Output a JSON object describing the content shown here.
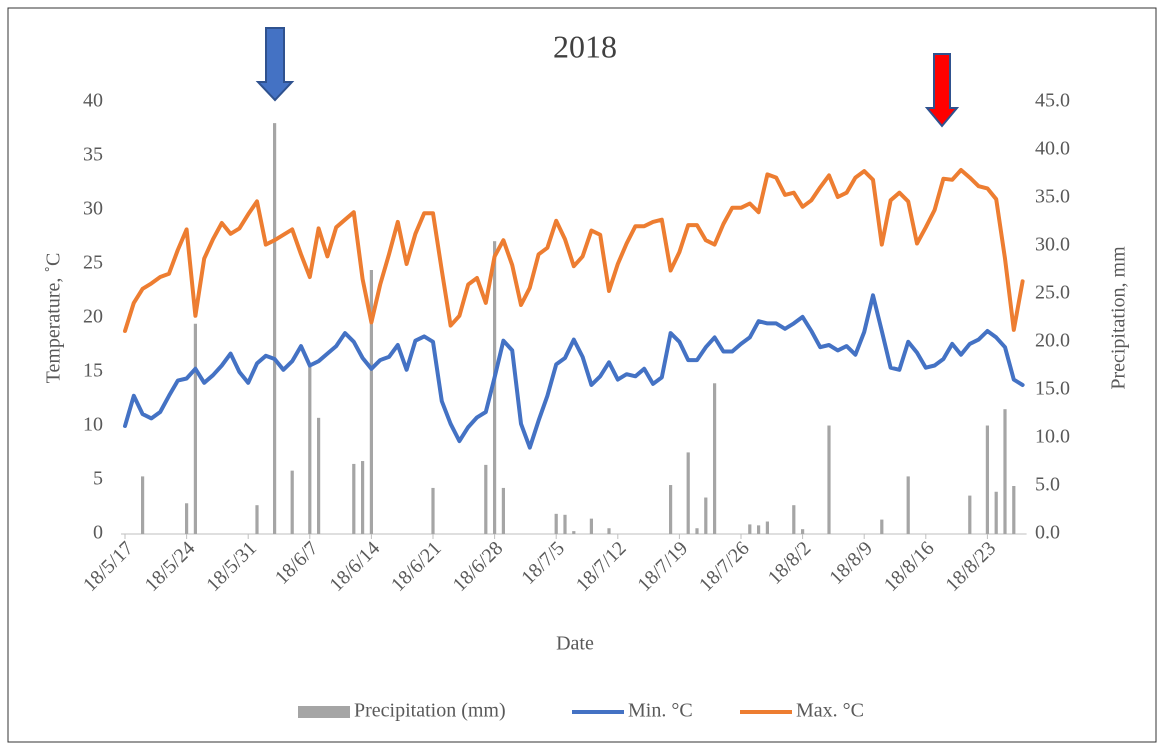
{
  "chart_data": {
    "type": "combo",
    "title": "2018",
    "x_label": "Date",
    "y_label": "Temperature, ˚C",
    "y2_label": "Precipitation, mm",
    "categories": [
      "18/5/17",
      null,
      null,
      null,
      null,
      null,
      null,
      "18/5/24",
      null,
      null,
      null,
      null,
      null,
      null,
      "18/5/31",
      null,
      null,
      null,
      null,
      null,
      null,
      "18/6/7",
      null,
      null,
      null,
      null,
      null,
      null,
      "18/6/14",
      null,
      null,
      null,
      null,
      null,
      null,
      "18/6/21",
      null,
      null,
      null,
      null,
      null,
      null,
      "18/6/28",
      null,
      null,
      null,
      null,
      null,
      null,
      "18/7/5",
      null,
      null,
      null,
      null,
      null,
      null,
      "18/7/12",
      null,
      null,
      null,
      null,
      null,
      null,
      "18/7/19",
      null,
      null,
      null,
      null,
      null,
      null,
      "18/7/26",
      null,
      null,
      null,
      null,
      null,
      null,
      "18/8/2",
      null,
      null,
      null,
      null,
      null,
      null,
      "18/8/9",
      null,
      null,
      null,
      null,
      null,
      null,
      "18/8/16",
      null,
      null,
      null,
      null,
      null,
      null,
      "18/8/23",
      null,
      null,
      null,
      null
    ],
    "series": [
      {
        "name": "Precipitation (mm)",
        "type": "bar",
        "axis": "y2",
        "color": "#a5a5a5",
        "values": [
          0,
          0,
          6.0,
          0,
          0,
          0,
          0,
          3.2,
          21.9,
          0,
          0,
          0,
          0,
          0,
          0,
          3.0,
          0,
          42.8,
          0,
          6.6,
          0,
          17.7,
          12.1,
          0,
          0,
          0,
          7.3,
          7.6,
          27.5,
          0,
          0,
          0,
          0,
          0,
          0,
          4.8,
          0,
          0,
          0,
          0,
          0,
          7.2,
          30.5,
          4.8,
          0,
          0,
          0,
          0,
          0,
          2.1,
          2.0,
          0.3,
          0,
          1.6,
          0,
          0.6,
          0,
          0,
          0,
          0,
          0,
          0,
          5.1,
          0,
          8.5,
          0.6,
          3.8,
          15.7,
          0,
          0,
          0,
          1.0,
          0.9,
          1.3,
          0,
          0,
          3.0,
          0.5,
          0,
          0,
          11.3,
          0,
          0,
          0,
          0,
          0,
          1.5,
          0,
          0,
          6.0,
          0,
          0,
          0,
          0,
          0,
          0,
          4.0,
          0,
          11.3,
          4.4,
          13.0,
          5.0,
          0
        ]
      },
      {
        "name": "Min. °C",
        "type": "line",
        "color": "#4472c4",
        "values": [
          10,
          12.8,
          11.1,
          10.7,
          11.3,
          12.8,
          14.2,
          14.4,
          15.3,
          14,
          14.7,
          15.6,
          16.7,
          15,
          14,
          15.8,
          16.5,
          16.2,
          15.2,
          16,
          17.4,
          15.6,
          16,
          16.7,
          17.4,
          18.6,
          17.8,
          16.3,
          15.3,
          16.1,
          16.4,
          17.5,
          15.2,
          17.9,
          18.3,
          17.8,
          12.3,
          10.2,
          8.6,
          9.9,
          10.8,
          11.3,
          14.5,
          17.9,
          17,
          10.2,
          8.0,
          10.5,
          12.8,
          15.7,
          16.3,
          18,
          16.4,
          13.8,
          14.6,
          15.9,
          14.3,
          14.8,
          14.6,
          15.3,
          13.9,
          14.5,
          18.6,
          17.8,
          16.1,
          16.1,
          17.3,
          18.2,
          16.9,
          16.9,
          17.6,
          18.2,
          19.7,
          19.5,
          19.5,
          19,
          19.5,
          20.1,
          18.8,
          17.3,
          17.5,
          17,
          17.4,
          16.6,
          18.7,
          22.1,
          18.8,
          15.4,
          15.2,
          17.8,
          16.8,
          15.4,
          15.6,
          16.2,
          17.6,
          16.6,
          17.6,
          18,
          18.8,
          18.2,
          17.3,
          14.3,
          13.8
        ]
      },
      {
        "name": "Max. °C",
        "type": "line",
        "color": "#ed7d31",
        "values": [
          18.8,
          21.4,
          22.7,
          23.2,
          23.8,
          24.1,
          26.3,
          28.2,
          20.2,
          25.5,
          27.3,
          28.8,
          27.8,
          28.3,
          29.6,
          30.8,
          26.8,
          27.2,
          27.7,
          28.2,
          25.9,
          23.8,
          28.3,
          25.7,
          28.4,
          29.1,
          29.8,
          23.6,
          19.6,
          23.1,
          25.9,
          28.9,
          25,
          27.8,
          29.7,
          29.7,
          24.4,
          19.3,
          20.2,
          23.1,
          23.7,
          21.4,
          25.7,
          27.2,
          24.9,
          21.2,
          22.8,
          25.9,
          26.5,
          29,
          27.3,
          24.8,
          25.7,
          28.1,
          27.7,
          22.5,
          25,
          26.9,
          28.5,
          28.5,
          28.9,
          29.1,
          24.4,
          26.1,
          28.6,
          28.6,
          27.2,
          26.8,
          28.7,
          30.2,
          30.2,
          30.6,
          29.8,
          33.3,
          33,
          31.4,
          31.6,
          30.3,
          30.9,
          32.1,
          33.2,
          31.2,
          31.6,
          33,
          33.6,
          32.8,
          26.8,
          30.9,
          31.6,
          30.8,
          26.9,
          28.4,
          30,
          32.9,
          32.8,
          33.7,
          33,
          32.2,
          32,
          31,
          25.5,
          18.9,
          23.4
        ]
      }
    ],
    "ylim": [
      0,
      40
    ],
    "yticks": [
      0,
      5,
      10,
      15,
      20,
      25,
      30,
      35,
      40
    ],
    "y2lim": [
      0,
      45
    ],
    "y2ticks": [
      {
        "value": 0,
        "label": "0.0"
      },
      {
        "value": 5,
        "label": "5.0"
      },
      {
        "value": 10,
        "label": "10.0"
      },
      {
        "value": 15,
        "label": "15.0"
      },
      {
        "value": 20,
        "label": "20.0"
      },
      {
        "value": 25,
        "label": "25.0"
      },
      {
        "value": 30,
        "label": "30.0"
      },
      {
        "value": 35,
        "label": "35.0"
      },
      {
        "value": 40,
        "label": "40.0"
      },
      {
        "value": 45,
        "label": "45.0"
      }
    ],
    "grid": false,
    "legend": "bottom"
  }
}
